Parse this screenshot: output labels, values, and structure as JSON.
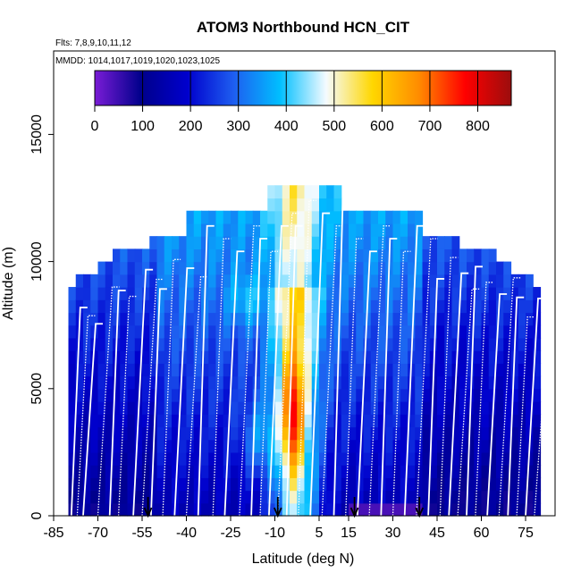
{
  "chart_data": {
    "type": "heatmap",
    "title": "ATOM3 Northbound HCN_CIT",
    "flights_note": "Flts: 7,8,9,10,11,12",
    "dates_note": "MMDD: 1014,1017,1019,1020,1023,1025",
    "xlabel": "Latitude (deg N)",
    "ylabel": "Altitude (m)",
    "xlim": [
      -85,
      85
    ],
    "ylim": [
      0,
      17500
    ],
    "x_ticks": [
      -85,
      -70,
      -55,
      -40,
      -25,
      -10,
      5,
      15,
      30,
      45,
      60,
      75
    ],
    "y_ticks": [
      0,
      5000,
      10000,
      15000
    ],
    "colorbar": {
      "ticks": [
        0,
        100,
        200,
        300,
        400,
        500,
        600,
        700,
        800
      ],
      "range": [
        0,
        870
      ],
      "colors": [
        "#7a1cd6",
        "#00008b",
        "#0000cd",
        "#1e5ef0",
        "#00bfff",
        "#f5fbff",
        "#ffd700",
        "#ff8c00",
        "#ff0000",
        "#9b0d0d"
      ]
    },
    "grid": {
      "lat_start": -80,
      "lat_end": 80,
      "lat_step": 2.5,
      "alt_step": 500
    },
    "profile_latitudes": [
      -79,
      -77,
      -75,
      -70,
      -66,
      -63,
      -58,
      -55,
      -52,
      -48,
      -44,
      -40,
      -36,
      -31,
      -27,
      -22,
      -18,
      -15,
      -12,
      -9,
      -6,
      -2,
      2,
      6,
      10,
      14,
      18,
      22,
      26,
      30,
      34,
      38,
      42,
      46,
      49,
      52,
      55,
      58,
      62,
      66,
      69,
      72,
      75,
      78
    ],
    "arrow_latitudes": [
      -53,
      -9,
      17,
      39
    ]
  }
}
